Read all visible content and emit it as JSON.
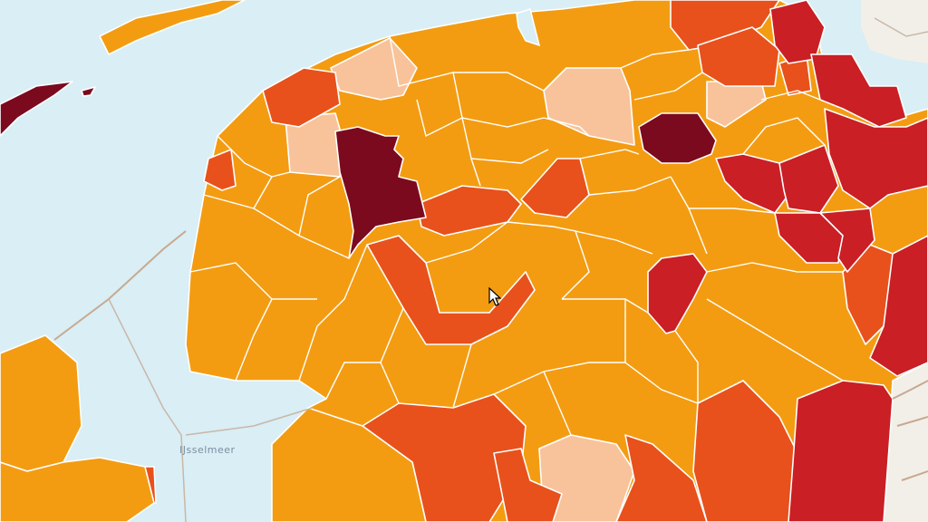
{
  "map": {
    "water_label": "IJsselmeer",
    "colors": {
      "water": "#d9eef5",
      "land_outside": "#f2efe9",
      "very_low": "#f8c39a",
      "low": "#f39c12",
      "medium": "#e8511c",
      "high": "#c91f25",
      "very_high": "#7b0a1f"
    },
    "legend_classes": [
      "very_low",
      "low",
      "medium",
      "high",
      "very_high"
    ]
  }
}
